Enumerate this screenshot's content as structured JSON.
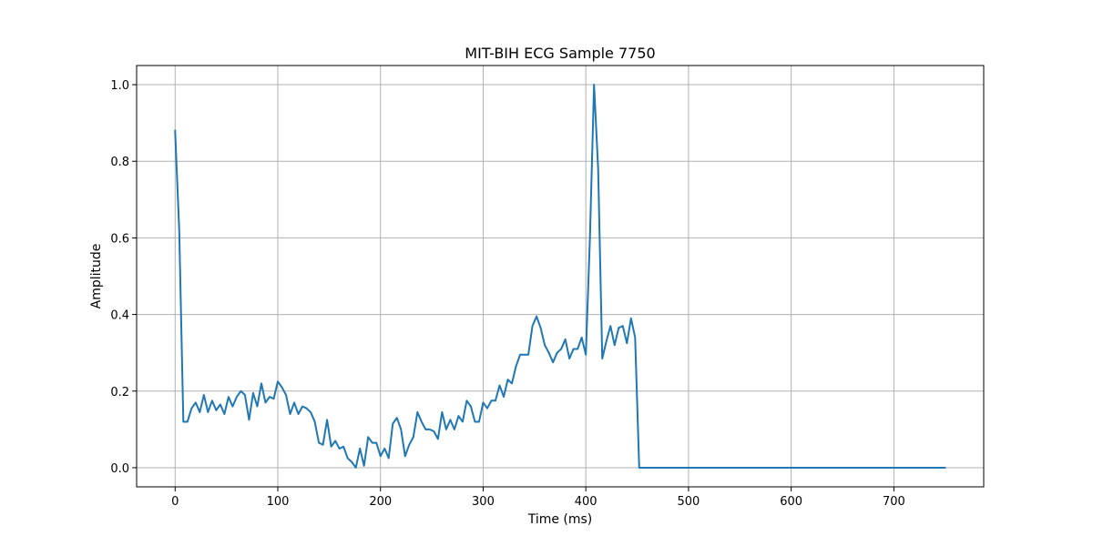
{
  "chart_data": {
    "type": "line",
    "title": "MIT-BIH ECG Sample 7750",
    "xlabel": "Time (ms)",
    "ylabel": "Amplitude",
    "xlim": [
      -37.5,
      787.5
    ],
    "ylim": [
      -0.05,
      1.05
    ],
    "xticks": [
      0,
      100,
      200,
      300,
      400,
      500,
      600,
      700
    ],
    "yticks": [
      0.0,
      0.2,
      0.4,
      0.6,
      0.8,
      1.0
    ],
    "grid": true,
    "series": [
      {
        "color": "#1f77b4",
        "x": [
          0,
          4,
          8,
          12,
          16,
          20,
          24,
          28,
          32,
          36,
          40,
          44,
          48,
          52,
          56,
          60,
          64,
          68,
          72,
          76,
          80,
          84,
          88,
          92,
          96,
          100,
          104,
          108,
          112,
          116,
          120,
          124,
          128,
          132,
          136,
          140,
          144,
          148,
          152,
          156,
          160,
          164,
          168,
          172,
          176,
          180,
          184,
          188,
          192,
          196,
          200,
          204,
          208,
          212,
          216,
          220,
          224,
          228,
          232,
          236,
          240,
          244,
          248,
          252,
          256,
          260,
          264,
          268,
          272,
          276,
          280,
          284,
          288,
          292,
          296,
          300,
          304,
          308,
          312,
          316,
          320,
          324,
          328,
          332,
          336,
          340,
          344,
          348,
          352,
          356,
          360,
          364,
          368,
          372,
          376,
          380,
          384,
          388,
          392,
          396,
          400,
          404,
          408,
          412,
          416,
          420,
          424,
          428,
          432,
          436,
          440,
          444,
          448,
          452,
          456,
          750
        ],
        "y": [
          0.88,
          0.62,
          0.12,
          0.12,
          0.155,
          0.17,
          0.145,
          0.19,
          0.145,
          0.175,
          0.15,
          0.165,
          0.14,
          0.185,
          0.16,
          0.185,
          0.2,
          0.19,
          0.125,
          0.195,
          0.16,
          0.22,
          0.17,
          0.185,
          0.18,
          0.225,
          0.21,
          0.19,
          0.14,
          0.17,
          0.14,
          0.16,
          0.155,
          0.145,
          0.12,
          0.065,
          0.06,
          0.125,
          0.055,
          0.07,
          0.05,
          0.055,
          0.025,
          0.015,
          0.0,
          0.05,
          0.005,
          0.08,
          0.065,
          0.065,
          0.03,
          0.05,
          0.025,
          0.115,
          0.13,
          0.1,
          0.03,
          0.06,
          0.08,
          0.145,
          0.12,
          0.1,
          0.1,
          0.095,
          0.075,
          0.145,
          0.1,
          0.125,
          0.1,
          0.135,
          0.12,
          0.175,
          0.16,
          0.12,
          0.12,
          0.17,
          0.155,
          0.175,
          0.175,
          0.215,
          0.185,
          0.23,
          0.22,
          0.265,
          0.295,
          0.295,
          0.295,
          0.37,
          0.395,
          0.365,
          0.32,
          0.3,
          0.275,
          0.3,
          0.31,
          0.335,
          0.285,
          0.31,
          0.31,
          0.34,
          0.295,
          0.6,
          1.0,
          0.78,
          0.285,
          0.33,
          0.37,
          0.32,
          0.365,
          0.37,
          0.325,
          0.39,
          0.34,
          0.0,
          0.0,
          0.0
        ]
      }
    ]
  }
}
